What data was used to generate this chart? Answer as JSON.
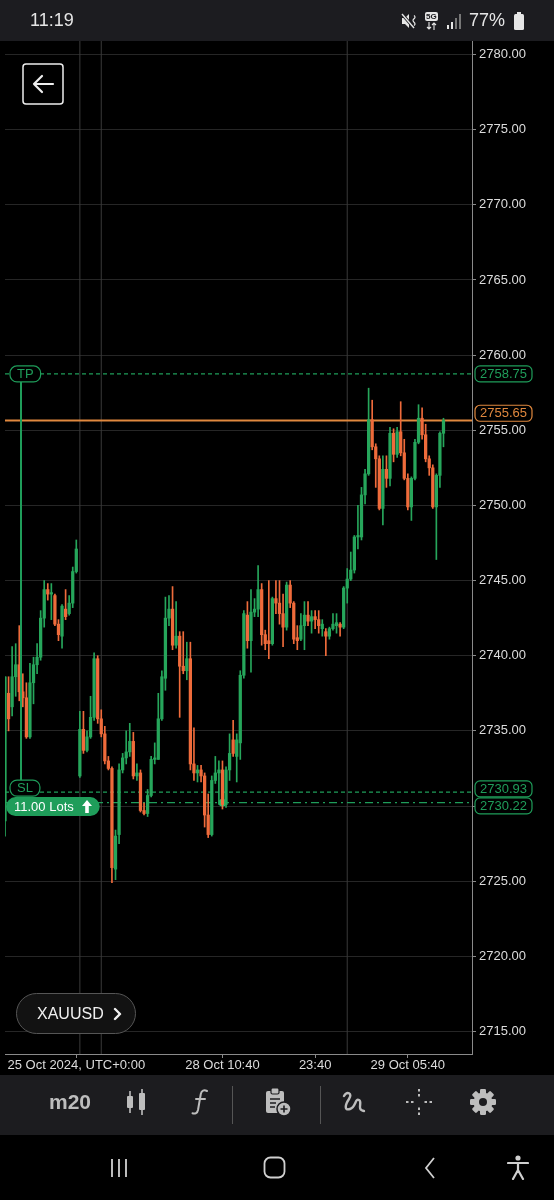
{
  "chart_data": {
    "type": "candlestick",
    "categories": [
      null,
      null,
      null,
      null,
      null,
      null,
      null,
      null,
      null,
      null,
      null,
      null,
      null,
      null,
      null,
      null,
      null,
      null,
      null,
      null,
      "25 Oct 2024, UTC+0:00",
      null,
      null,
      null,
      null,
      null,
      null,
      null,
      null,
      null,
      null,
      null,
      null,
      null,
      null,
      null,
      null,
      null,
      null,
      null,
      null,
      null,
      null,
      null,
      null,
      null,
      null,
      null,
      null,
      null,
      null,
      null,
      null,
      null,
      null,
      null,
      null,
      null,
      null,
      null,
      null,
      "28 Oct 10:40",
      null,
      null,
      null,
      null,
      null,
      null,
      null,
      null,
      null,
      null,
      null,
      null,
      null,
      null,
      null,
      null,
      null,
      null,
      null,
      null,
      null,
      null,
      null,
      null,
      null,
      "23:40",
      null,
      null,
      null,
      null,
      null,
      null,
      null,
      null,
      null,
      null,
      null,
      null,
      null,
      null,
      null,
      null,
      null,
      null,
      null,
      null,
      null,
      null,
      null,
      null,
      null,
      "29 Oct 05:40",
      null,
      null,
      null,
      null,
      null,
      null,
      null,
      null,
      null,
      null,
      null,
      null,
      null,
      null,
      null,
      null,
      null,
      null
    ],
    "ohlc": [
      [
        2729.0,
        2738.6,
        2728.0,
        2738.6
      ],
      [
        2737.5,
        2738.6,
        2735.0,
        2735.8
      ],
      [
        2736.6,
        2740.6,
        2736.0,
        2738.6
      ],
      [
        2738.6,
        2740.8,
        2737.3,
        2739.4
      ],
      [
        2739.4,
        2742.0,
        2737.0,
        2737.6
      ],
      [
        2737.6,
        2738.8,
        2736.6,
        2737.2
      ],
      [
        2737.2,
        2738.2,
        2734.5,
        2734.6
      ],
      [
        2734.6,
        2739.5,
        2734.5,
        2738.2
      ],
      [
        2738.2,
        2739.9,
        2736.8,
        2739.4
      ],
      [
        2739.4,
        2740.8,
        2738.8,
        2739.9
      ],
      [
        2739.9,
        2743.0,
        2739.7,
        2742.5
      ],
      [
        2742.5,
        2745.0,
        2741.9,
        2744.4
      ],
      [
        2744.4,
        2744.8,
        2743.7,
        2744.1
      ],
      [
        2744.1,
        2744.8,
        2742.4,
        2744.2
      ],
      [
        2744.0,
        2744.1,
        2742.0,
        2742.1
      ],
      [
        2742.1,
        2742.4,
        2741.0,
        2741.4
      ],
      [
        2741.3,
        2743.4,
        2740.5,
        2743.3
      ],
      [
        2743.1,
        2744.4,
        2742.4,
        2742.6
      ],
      [
        2742.8,
        2744.0,
        2742.7,
        2743.5
      ],
      [
        2743.5,
        2745.9,
        2743.2,
        2745.6
      ],
      [
        2745.6,
        2747.7,
        2745.5,
        2747.1
      ],
      [
        2732.0,
        2736.3,
        2731.9,
        2735.1
      ],
      [
        2735.1,
        2736.3,
        2733.5,
        2733.7
      ],
      [
        2733.7,
        2735.0,
        2733.6,
        2734.6
      ],
      [
        2734.6,
        2737.3,
        2734.5,
        2735.9
      ],
      [
        2735.9,
        2740.2,
        2735.7,
        2739.8
      ],
      [
        2739.8,
        2740.0,
        2735.5,
        2735.8
      ],
      [
        2735.8,
        2736.4,
        2734.6,
        2734.8
      ],
      [
        2734.8,
        2735.3,
        2732.8,
        2733.0
      ],
      [
        2733.0,
        2733.3,
        2732.4,
        2732.5
      ],
      [
        2732.5,
        2732.6,
        2724.9,
        2725.9
      ],
      [
        2725.8,
        2728.4,
        2725.1,
        2728.0
      ],
      [
        2728.1,
        2732.8,
        2727.5,
        2732.4
      ],
      [
        2732.4,
        2733.5,
        2732.2,
        2733.2
      ],
      [
        2733.2,
        2735.0,
        2732.8,
        2733.6
      ],
      [
        2733.6,
        2735.5,
        2733.3,
        2734.3
      ],
      [
        2734.3,
        2734.9,
        2731.8,
        2732.0
      ],
      [
        2732.0,
        2732.8,
        2731.7,
        2732.2
      ],
      [
        2732.2,
        2732.4,
        2729.6,
        2729.7
      ],
      [
        2729.7,
        2730.2,
        2729.4,
        2729.5
      ],
      [
        2729.5,
        2731.1,
        2729.3,
        2730.7
      ],
      [
        2730.7,
        2733.3,
        2730.6,
        2733.1
      ],
      [
        2733.1,
        2734.2,
        2732.8,
        2733.2
      ],
      [
        2733.1,
        2737.5,
        2733.1,
        2735.8
      ],
      [
        2735.8,
        2739.0,
        2735.7,
        2738.6
      ],
      [
        2738.5,
        2743.9,
        2737.7,
        2742.5
      ],
      [
        2742.5,
        2744.0,
        2742.0,
        2743.1
      ],
      [
        2743.1,
        2744.6,
        2740.4,
        2740.7
      ],
      [
        2740.7,
        2743.6,
        2740.5,
        2741.3
      ],
      [
        2741.3,
        2741.6,
        2735.9,
        2739.3
      ],
      [
        2739.3,
        2741.6,
        2738.8,
        2739.0
      ],
      [
        2739.0,
        2740.9,
        2738.4,
        2739.8
      ],
      [
        2739.8,
        2740.9,
        2732.4,
        2732.8
      ],
      [
        2732.8,
        2735.2,
        2731.7,
        2732.2
      ],
      [
        2732.2,
        2732.7,
        2731.6,
        2732.4
      ],
      [
        2732.4,
        2732.7,
        2731.6,
        2732.0
      ],
      [
        2732.0,
        2732.2,
        2728.6,
        2729.4
      ],
      [
        2729.4,
        2730.8,
        2727.9,
        2728.1
      ],
      [
        2728.1,
        2732.0,
        2728.0,
        2731.7
      ],
      [
        2731.7,
        2733.3,
        2731.5,
        2732.2
      ],
      [
        2732.2,
        2733.0,
        2730.1,
        2732.4
      ],
      [
        2732.4,
        2733.0,
        2729.8,
        2730.1
      ],
      [
        2730.1,
        2732.6,
        2729.9,
        2732.4
      ],
      [
        2732.4,
        2734.8,
        2731.7,
        2733.5
      ],
      [
        2734.4,
        2735.7,
        2733.3,
        2733.5
      ],
      [
        2733.3,
        2734.8,
        2731.6,
        2734.4
      ],
      [
        2734.2,
        2739.0,
        2733.1,
        2738.7
      ],
      [
        2738.7,
        2743.0,
        2738.5,
        2742.8
      ],
      [
        2742.7,
        2743.6,
        2740.5,
        2741.0
      ],
      [
        2741.0,
        2744.4,
        2738.9,
        2742.9
      ],
      [
        2742.9,
        2743.8,
        2742.6,
        2743.1
      ],
      [
        2743.1,
        2746.0,
        2742.6,
        2744.4
      ],
      [
        2744.4,
        2744.8,
        2740.7,
        2741.4
      ],
      [
        2741.4,
        2741.7,
        2740.4,
        2740.8
      ],
      [
        2741.0,
        2745.0,
        2739.8,
        2740.8
      ],
      [
        2740.8,
        2743.9,
        2740.7,
        2743.8
      ],
      [
        2743.8,
        2745.0,
        2742.8,
        2743.5
      ],
      [
        2743.5,
        2745.0,
        2742.1,
        2742.8
      ],
      [
        2742.8,
        2744.1,
        2740.6,
        2741.9
      ],
      [
        2741.9,
        2744.9,
        2741.7,
        2744.7
      ],
      [
        2744.7,
        2745.0,
        2743.2,
        2743.5
      ],
      [
        2743.5,
        2743.6,
        2740.8,
        2741.1
      ],
      [
        2741.2,
        2742.0,
        2740.4,
        2741.0
      ],
      [
        2741.1,
        2742.8,
        2741.0,
        2742.0
      ],
      [
        2742.0,
        2743.6,
        2740.4,
        2742.7
      ],
      [
        2742.7,
        2743.6,
        2742.0,
        2742.3
      ],
      [
        2742.3,
        2743.0,
        2741.5,
        2742.6
      ],
      [
        2742.6,
        2743.0,
        2741.8,
        2742.4
      ],
      [
        2742.4,
        2743.0,
        2741.5,
        2742.0
      ],
      [
        2741.8,
        2742.4,
        2741.3,
        2742.1
      ],
      [
        2741.6,
        2741.8,
        2740.0,
        2741.3
      ],
      [
        2741.3,
        2741.9,
        2741.1,
        2741.8
      ],
      [
        2741.8,
        2742.8,
        2741.7,
        2742.1
      ],
      [
        2742.0,
        2742.8,
        2741.5,
        2742.2
      ],
      [
        2742.1,
        2742.2,
        2741.3,
        2741.9
      ],
      [
        2741.9,
        2744.6,
        2741.8,
        2744.5
      ],
      [
        2744.5,
        2745.8,
        2743.5,
        2745.1
      ],
      [
        2745.1,
        2746.9,
        2745.0,
        2745.7
      ],
      [
        2745.7,
        2748.0,
        2745.5,
        2747.9
      ],
      [
        2747.9,
        2750.0,
        2747.1,
        2748.0
      ],
      [
        2747.9,
        2751.2,
        2747.7,
        2750.7
      ],
      [
        2750.7,
        2752.4,
        2750.1,
        2752.1
      ],
      [
        2752.1,
        2757.8,
        2752.0,
        2755.7
      ],
      [
        2755.7,
        2757.0,
        2753.7,
        2753.9
      ],
      [
        2753.9,
        2754.1,
        2751.2,
        2753.1
      ],
      [
        2753.1,
        2753.3,
        2749.7,
        2749.8
      ],
      [
        2749.8,
        2753.3,
        2748.7,
        2752.4
      ],
      [
        2752.4,
        2753.3,
        2751.2,
        2751.8
      ],
      [
        2751.8,
        2755.2,
        2751.3,
        2754.8
      ],
      [
        2754.8,
        2755.1,
        2752.9,
        2753.4
      ],
      [
        2753.4,
        2755.2,
        2753.2,
        2754.9
      ],
      [
        2754.9,
        2756.9,
        2753.3,
        2753.5
      ],
      [
        2753.5,
        2754.4,
        2751.7,
        2751.8
      ],
      [
        2751.8,
        2752.1,
        2749.7,
        2749.9
      ],
      [
        2749.9,
        2751.9,
        2749.0,
        2751.8
      ],
      [
        2751.8,
        2754.4,
        2751.7,
        2754.2
      ],
      [
        2754.2,
        2756.7,
        2754.1,
        2755.8
      ],
      [
        2755.8,
        2756.5,
        2754.4,
        2754.7
      ],
      [
        2754.7,
        2755.4,
        2752.9,
        2753.1
      ],
      [
        2753.1,
        2753.3,
        2752.0,
        2752.5
      ],
      [
        2752.5,
        2752.7,
        2749.8,
        2749.9
      ],
      [
        2749.9,
        2752.1,
        2746.4,
        2752.0
      ],
      [
        2752.0,
        2754.9,
        2751.2,
        2754.8
      ],
      [
        2754.8,
        2755.8,
        2753.9,
        2755.65
      ],
      null,
      null,
      null,
      null,
      null,
      null,
      null,
      null
    ],
    "colors": [
      "#26a65b",
      "#ef6b3b",
      "#26a65b",
      "#26a65b",
      "#ef6b3b",
      "#ef6b3b",
      "#ef6b3b",
      "#26a65b",
      "#26a65b",
      "#26a65b",
      "#26a65b",
      "#26a65b",
      "#ef6b3b",
      "#26a65b",
      "#ef6b3b",
      "#ef6b3b",
      "#26a65b",
      "#ef6b3b",
      "#26a65b",
      "#26a65b",
      "#26a65b",
      "#26a65b",
      "#ef6b3b",
      "#26a65b",
      "#26a65b",
      "#26a65b",
      "#ef6b3b",
      "#ef6b3b",
      "#ef6b3b",
      "#ef6b3b",
      "#ef6b3b",
      "#26a65b",
      "#26a65b",
      "#26a65b",
      "#26a65b",
      "#26a65b",
      "#ef6b3b",
      "#26a65b",
      "#ef6b3b",
      "#ef6b3b",
      "#26a65b",
      "#26a65b",
      "#26a65b",
      "#26a65b",
      "#26a65b",
      "#26a65b",
      "#26a65b",
      "#ef6b3b",
      "#26a65b",
      "#ef6b3b",
      "#ef6b3b",
      "#26a65b",
      "#ef6b3b",
      "#ef6b3b",
      "#26a65b",
      "#ef6b3b",
      "#ef6b3b",
      "#ef6b3b",
      "#26a65b",
      "#26a65b",
      "#26a65b",
      "#ef6b3b",
      "#26a65b",
      "#26a65b",
      "#ef6b3b",
      "#26a65b",
      "#26a65b",
      "#26a65b",
      "#ef6b3b",
      "#26a65b",
      "#26a65b",
      "#26a65b",
      "#ef6b3b",
      "#ef6b3b",
      "#ef6b3b",
      "#26a65b",
      "#ef6b3b",
      "#ef6b3b",
      "#ef6b3b",
      "#26a65b",
      "#ef6b3b",
      "#ef6b3b",
      "#ef6b3b",
      "#26a65b",
      "#26a65b",
      "#ef6b3b",
      "#26a65b",
      "#ef6b3b",
      "#ef6b3b",
      "#26a65b",
      "#ef6b3b",
      "#26a65b",
      "#26a65b",
      "#26a65b",
      "#ef6b3b",
      "#26a65b",
      "#26a65b",
      "#26a65b",
      "#26a65b",
      "#26a65b",
      "#26a65b",
      "#26a65b",
      "#26a65b",
      "#ef6b3b",
      "#ef6b3b",
      "#ef6b3b",
      "#26a65b",
      "#ef6b3b",
      "#26a65b",
      "#ef6b3b",
      "#26a65b",
      "#ef6b3b",
      "#ef6b3b",
      "#ef6b3b",
      "#26a65b",
      "#26a65b",
      "#26a65b",
      "#ef6b3b",
      "#ef6b3b",
      "#ef6b3b",
      "#ef6b3b",
      "#26a65b",
      "#26a65b",
      "#26a65b",
      null,
      null,
      null,
      null,
      null,
      null,
      null,
      null
    ],
    "ylim": [
      2713.5,
      2780.9
    ],
    "yticks": [
      {
        "value": 2715,
        "label": "2715.00"
      },
      {
        "value": 2720,
        "label": "2720.00"
      },
      {
        "value": 2725,
        "label": "2725.00"
      },
      {
        "value": 2730,
        "label": null
      },
      {
        "value": 2735,
        "label": "2735.00"
      },
      {
        "value": 2740,
        "label": "2740.00"
      },
      {
        "value": 2745,
        "label": "2745.00"
      },
      {
        "value": 2750,
        "label": "2750.00"
      },
      {
        "value": 2755,
        "label": "2755.00"
      },
      {
        "value": 2760,
        "label": "2760.00"
      },
      {
        "value": 2765,
        "label": "2765.00"
      },
      {
        "value": 2770,
        "label": "2770.00"
      },
      {
        "value": 2775,
        "label": "2775.00"
      },
      {
        "value": 2780,
        "label": "2780.00"
      }
    ],
    "grid": "y",
    "ref_lines": [
      {
        "axis": "y",
        "value": 2758.75,
        "label": "2758.75",
        "color": "#1f9d5a",
        "line_style": "dashed"
      },
      {
        "axis": "y",
        "value": 2755.65,
        "label": "2755.65",
        "color": "#e0883e",
        "line_style": "solid"
      },
      {
        "axis": "y",
        "value": 2730.93,
        "label": "2730.93",
        "color": "#1f9d5a",
        "line_style": "dashed"
      },
      {
        "axis": "y",
        "value": 2730.22,
        "label": "2730.22",
        "color": "#1f9d5a",
        "line_style": "dashdot"
      }
    ],
    "series": [
      {
        "type": "scatter",
        "color": "#1fbf6a",
        "marker": "circle",
        "values": [
          null,
          null,
          null,
          null,
          null,
          null,
          null,
          null,
          null,
          null,
          null,
          null,
          null,
          null,
          null,
          null,
          null,
          null,
          null,
          null,
          null,
          null,
          null,
          null,
          null,
          null,
          null,
          null,
          null,
          null,
          null,
          null,
          null,
          null,
          null,
          null,
          null,
          null,
          null,
          null,
          null,
          null,
          null,
          null,
          null,
          null,
          null,
          null,
          null,
          null,
          null,
          null,
          null,
          null,
          null,
          null,
          null,
          null,
          null,
          null,
          null,
          2730.22,
          null,
          null,
          null,
          null,
          null,
          null,
          null,
          null,
          null,
          null,
          null,
          null,
          null,
          null,
          null,
          null,
          null,
          null,
          null,
          null,
          null,
          null,
          null,
          null,
          null,
          null,
          null,
          null,
          null,
          null,
          null,
          null,
          null,
          null,
          null,
          null,
          null,
          null,
          null,
          null,
          null,
          null,
          null,
          null,
          null,
          null,
          null,
          null,
          null,
          null,
          null,
          null,
          null,
          null,
          null,
          null,
          null,
          null,
          null,
          null,
          null,
          null,
          null,
          null,
          null,
          null,
          null,
          null,
          null,
          null
        ]
      }
    ],
    "annotations": [
      "11:19",
      "77%",
      "5G",
      "XAUUSD",
      "m20",
      {
        "text": "TP",
        "y": 2758.75
      },
      {
        "text": "SL",
        "y": 2730.93
      },
      {
        "text": "11.00 Lots",
        "y": 2730.22
      }
    ]
  }
}
